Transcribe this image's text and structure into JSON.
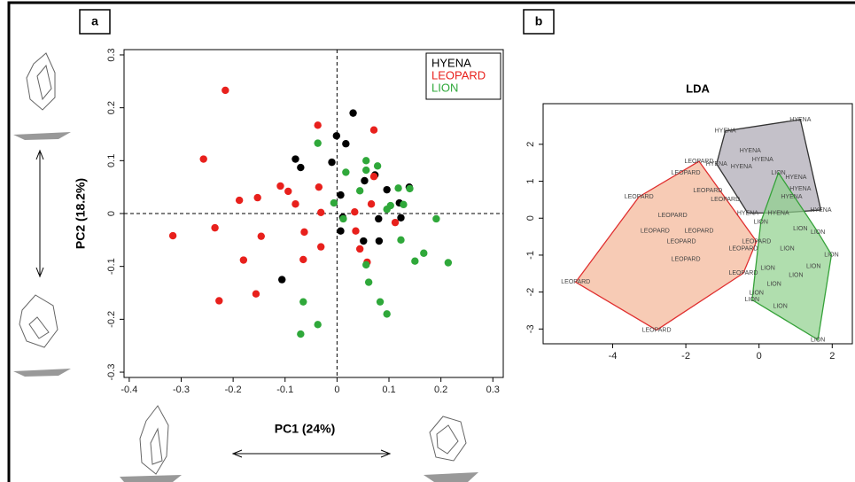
{
  "chart_data": [
    {
      "type": "scatter",
      "panel": "a",
      "x_label": "PC1 (24%)",
      "y_label": "PC2 (18.2%)",
      "xlim": [
        -0.41,
        0.32
      ],
      "ylim": [
        -0.31,
        0.31
      ],
      "xticks": [
        -0.4,
        -0.3,
        -0.2,
        -0.1,
        0,
        0.1,
        0.2,
        0.3
      ],
      "yticks": [
        -0.3,
        -0.2,
        -0.1,
        0,
        0.1,
        0.2,
        0.3
      ],
      "zero_lines": true,
      "legend": "top-right",
      "series": [
        {
          "name": "HYENA",
          "color": "#000000",
          "x": [
            0.031,
            -0.001,
            0.017,
            -0.08,
            -0.07,
            -0.01,
            0.007,
            0.053,
            0.073,
            0.096,
            0.139,
            0.12,
            0.123,
            0.08,
            0.081,
            0.051,
            0.007,
            0.011,
            -0.106
          ],
          "values": [
            0.19,
            0.147,
            0.132,
            0.103,
            0.087,
            0.097,
            0.035,
            0.062,
            0.073,
            0.045,
            0.05,
            0.02,
            -0.008,
            -0.01,
            -0.052,
            -0.052,
            -0.033,
            -0.007,
            -0.125
          ]
        },
        {
          "name": "LEOPARD",
          "color": "#e8201c",
          "x": [
            -0.215,
            -0.257,
            -0.316,
            -0.235,
            -0.188,
            -0.153,
            -0.146,
            -0.18,
            -0.156,
            -0.227,
            -0.109,
            -0.094,
            -0.08,
            -0.063,
            -0.065,
            -0.031,
            -0.037,
            -0.035,
            -0.031,
            0.036,
            0.044,
            0.058,
            0.071,
            0.071,
            0.066,
            0.112,
            0.034
          ],
          "values": [
            0.233,
            0.103,
            -0.042,
            -0.027,
            0.025,
            0.03,
            -0.043,
            -0.088,
            -0.152,
            -0.165,
            0.052,
            0.042,
            0.018,
            -0.035,
            -0.087,
            0.002,
            0.167,
            0.05,
            -0.063,
            -0.033,
            -0.067,
            -0.092,
            0.158,
            0.07,
            0.018,
            -0.017,
            0.003
          ]
        },
        {
          "name": "LION",
          "color": "#2fa83a",
          "x": [
            -0.037,
            0.017,
            0.056,
            0.056,
            0.044,
            0.078,
            0.103,
            0.096,
            0.118,
            0.14,
            0.128,
            0.191,
            0.123,
            0.15,
            0.167,
            0.214,
            0.056,
            0.061,
            0.083,
            0.096,
            -0.065,
            -0.037,
            -0.07,
            -0.006,
            0.012
          ],
          "values": [
            0.133,
            0.078,
            0.1,
            0.082,
            0.043,
            0.09,
            0.015,
            0.008,
            0.048,
            0.047,
            0.017,
            -0.01,
            -0.05,
            -0.09,
            -0.075,
            -0.093,
            -0.097,
            -0.13,
            -0.167,
            -0.19,
            -0.167,
            -0.21,
            -0.228,
            0.02,
            -0.01
          ]
        }
      ]
    },
    {
      "type": "scatter",
      "panel": "b",
      "title": "LDA",
      "labels_as_marks": true,
      "hulls": true,
      "xlim": [
        -5.9,
        2.55
      ],
      "ylim": [
        -3.4,
        3.1
      ],
      "xticks": [
        -4,
        -2,
        0,
        2
      ],
      "yticks": [
        -3,
        -2,
        -1,
        0,
        1,
        2
      ],
      "series": [
        {
          "name": "HYENA",
          "color": "#333333",
          "fill": "#aba6b2",
          "x": [
            1.13,
            -0.92,
            -0.24,
            0.1,
            -0.48,
            -1.16,
            1.01,
            1.13,
            1.69,
            0.53,
            -0.31,
            0.89
          ],
          "values": [
            2.67,
            2.36,
            1.83,
            1.59,
            1.39,
            1.47,
            1.11,
            0.79,
            0.22,
            0.14,
            0.14,
            0.58
          ]
        },
        {
          "name": "LEOPARD",
          "color": "#e03030",
          "fill": "#f3b596",
          "x": [
            -5.01,
            -2.8,
            -3.28,
            -1.64,
            -2.0,
            -1.4,
            -2.84,
            -2.12,
            -2.0,
            -1.64,
            -2.36,
            -0.43,
            -0.43,
            -0.07,
            -0.92
          ],
          "values": [
            -1.73,
            -3.03,
            0.58,
            1.54,
            1.23,
            0.75,
            -0.34,
            -0.63,
            -1.11,
            -0.34,
            0.07,
            -0.82,
            -1.49,
            -0.63,
            0.5
          ]
        },
        {
          "name": "LION",
          "color": "#36a23a",
          "fill": "#8fd08c",
          "x": [
            1.61,
            1.98,
            -0.19,
            0.58,
            0.41,
            0.24,
            1.01,
            1.49,
            0.53,
            1.13,
            0.05,
            0.77,
            1.61,
            -0.07
          ],
          "values": [
            -3.29,
            -0.99,
            -2.21,
            -2.38,
            -1.78,
            -1.35,
            -1.54,
            -1.3,
            1.23,
            -0.29,
            -0.1,
            -0.82,
            -0.38,
            -2.02
          ]
        }
      ]
    }
  ]
}
